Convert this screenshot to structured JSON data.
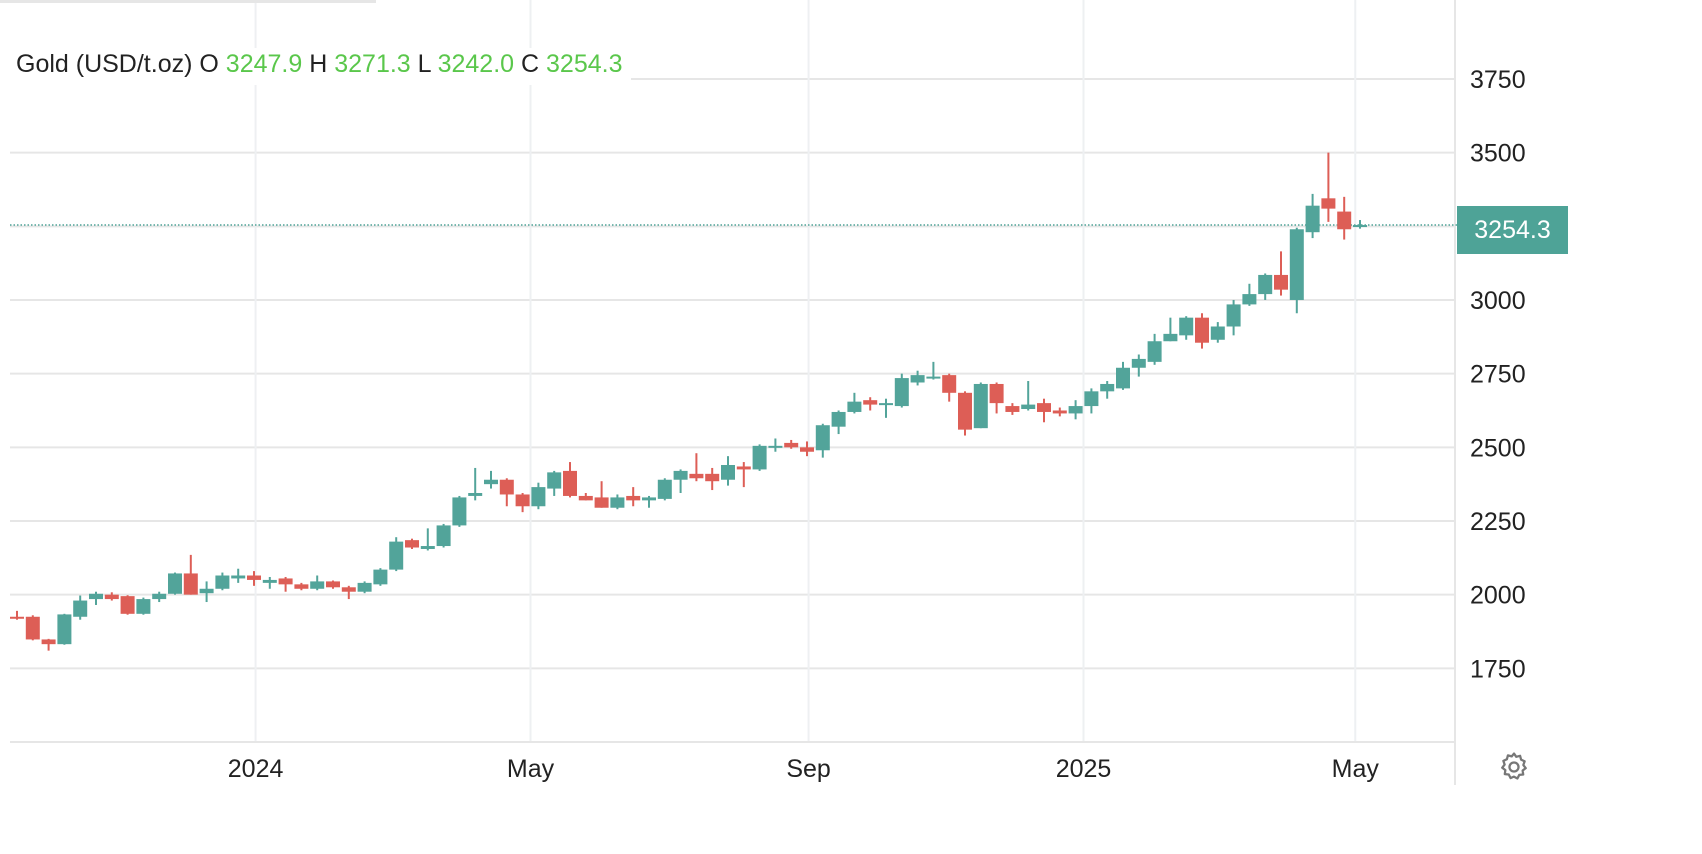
{
  "legend": {
    "name": "Gold (USD/t.oz)",
    "o_label": "O",
    "o": "3247.9",
    "h_label": "H",
    "h": "3271.3",
    "l_label": "L",
    "l": "3242.0",
    "c_label": "C",
    "c": "3254.3"
  },
  "current_price": "3254.3",
  "colors": {
    "up": "#52a49a",
    "down": "#dd5e56",
    "grid": "#e6e6e6",
    "badge": "#4ea397",
    "legend_value": "#5ac74b"
  },
  "icons": {
    "settings": "gear-icon"
  },
  "chart_data": {
    "type": "candlestick",
    "title": "Gold (USD/t.oz)",
    "interval": "weekly",
    "ylim": [
      1500,
      4018
    ],
    "xlim": [
      -0.45,
      91
    ],
    "grid": true,
    "y_ticks": [
      1750,
      2000,
      2250,
      2500,
      2750,
      3000,
      3250,
      3500,
      3750
    ],
    "y_tick_labels": [
      "1750",
      "2000",
      "2250",
      "2500",
      "2750",
      "3000",
      "",
      "3500",
      "3750"
    ],
    "x_ticks": [
      {
        "label": "2024",
        "index": 15.1
      },
      {
        "label": "May",
        "index": 32.5
      },
      {
        "label": "Sep",
        "index": 50.1
      },
      {
        "label": "2025",
        "index": 67.5
      },
      {
        "label": "May",
        "index": 84.7
      }
    ],
    "ohlc": [
      [
        1925,
        1945,
        1915,
        1923
      ],
      [
        1925,
        1930,
        1845,
        1848
      ],
      [
        1848,
        1850,
        1810,
        1832
      ],
      [
        1832,
        1935,
        1830,
        1933
      ],
      [
        1925,
        1997,
        1915,
        1980
      ],
      [
        1985,
        2010,
        1965,
        2003
      ],
      [
        2000,
        2008,
        1980,
        1985
      ],
      [
        1995,
        1998,
        1932,
        1935
      ],
      [
        1935,
        1990,
        1932,
        1985
      ],
      [
        1985,
        2010,
        1975,
        2003
      ],
      [
        2003,
        2075,
        2000,
        2072
      ],
      [
        2072,
        2135,
        2000,
        2000
      ],
      [
        2005,
        2045,
        1975,
        2020
      ],
      [
        2020,
        2075,
        2015,
        2065
      ],
      [
        2055,
        2088,
        2040,
        2065
      ],
      [
        2065,
        2080,
        2030,
        2050
      ],
      [
        2040,
        2060,
        2020,
        2050
      ],
      [
        2055,
        2060,
        2010,
        2035
      ],
      [
        2035,
        2040,
        2015,
        2020
      ],
      [
        2020,
        2065,
        2015,
        2045
      ],
      [
        2045,
        2048,
        2020,
        2025
      ],
      [
        2025,
        2030,
        1985,
        2010
      ],
      [
        2010,
        2045,
        2005,
        2040
      ],
      [
        2035,
        2090,
        2030,
        2085
      ],
      [
        2085,
        2195,
        2080,
        2180
      ],
      [
        2185,
        2190,
        2155,
        2160
      ],
      [
        2155,
        2225,
        2150,
        2165
      ],
      [
        2165,
        2240,
        2160,
        2235
      ],
      [
        2235,
        2335,
        2230,
        2330
      ],
      [
        2335,
        2430,
        2320,
        2345
      ],
      [
        2375,
        2420,
        2360,
        2390
      ],
      [
        2390,
        2395,
        2300,
        2340
      ],
      [
        2340,
        2345,
        2280,
        2300
      ],
      [
        2300,
        2380,
        2290,
        2365
      ],
      [
        2360,
        2420,
        2335,
        2415
      ],
      [
        2420,
        2450,
        2330,
        2335
      ],
      [
        2335,
        2345,
        2320,
        2320
      ],
      [
        2330,
        2385,
        2295,
        2295
      ],
      [
        2295,
        2340,
        2290,
        2330
      ],
      [
        2335,
        2365,
        2300,
        2320
      ],
      [
        2320,
        2335,
        2295,
        2330
      ],
      [
        2325,
        2395,
        2320,
        2390
      ],
      [
        2390,
        2425,
        2345,
        2420
      ],
      [
        2410,
        2480,
        2385,
        2395
      ],
      [
        2410,
        2430,
        2355,
        2385
      ],
      [
        2390,
        2470,
        2370,
        2440
      ],
      [
        2435,
        2450,
        2365,
        2425
      ],
      [
        2425,
        2510,
        2420,
        2505
      ],
      [
        2500,
        2530,
        2485,
        2505
      ],
      [
        2515,
        2525,
        2495,
        2500
      ],
      [
        2500,
        2520,
        2470,
        2485
      ],
      [
        2490,
        2580,
        2465,
        2575
      ],
      [
        2570,
        2625,
        2545,
        2620
      ],
      [
        2620,
        2685,
        2615,
        2655
      ],
      [
        2660,
        2670,
        2625,
        2645
      ],
      [
        2645,
        2665,
        2600,
        2650
      ],
      [
        2640,
        2750,
        2635,
        2735
      ],
      [
        2720,
        2760,
        2710,
        2745
      ],
      [
        2735,
        2790,
        2730,
        2740
      ],
      [
        2745,
        2750,
        2655,
        2685
      ],
      [
        2685,
        2690,
        2540,
        2560
      ],
      [
        2565,
        2720,
        2565,
        2715
      ],
      [
        2715,
        2720,
        2615,
        2650
      ],
      [
        2640,
        2650,
        2610,
        2620
      ],
      [
        2630,
        2725,
        2625,
        2645
      ],
      [
        2650,
        2665,
        2585,
        2620
      ],
      [
        2625,
        2635,
        2605,
        2615
      ],
      [
        2615,
        2660,
        2595,
        2640
      ],
      [
        2640,
        2700,
        2615,
        2690
      ],
      [
        2690,
        2725,
        2665,
        2715
      ],
      [
        2700,
        2790,
        2695,
        2770
      ],
      [
        2770,
        2815,
        2740,
        2800
      ],
      [
        2790,
        2885,
        2780,
        2860
      ],
      [
        2860,
        2940,
        2860,
        2885
      ],
      [
        2880,
        2945,
        2865,
        2940
      ],
      [
        2940,
        2955,
        2835,
        2855
      ],
      [
        2865,
        2925,
        2855,
        2910
      ],
      [
        2910,
        3000,
        2880,
        2985
      ],
      [
        2985,
        3055,
        2980,
        3020
      ],
      [
        3020,
        3090,
        3000,
        3085
      ],
      [
        3085,
        3165,
        3015,
        3035
      ],
      [
        3000,
        3245,
        2955,
        3240
      ],
      [
        3230,
        3360,
        3210,
        3320
      ],
      [
        3345,
        3500,
        3265,
        3310
      ],
      [
        3300,
        3350,
        3205,
        3240
      ],
      [
        3247.9,
        3271.3,
        3242.0,
        3254.3
      ]
    ]
  }
}
